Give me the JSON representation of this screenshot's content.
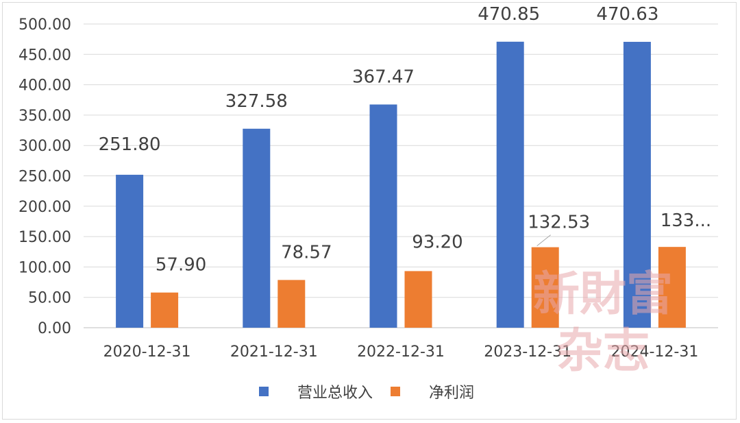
{
  "chart_data": {
    "type": "bar",
    "categories": [
      "2020-12-31",
      "2021-12-31",
      "2022-12-31",
      "2023-12-31",
      "2024-12-31"
    ],
    "series": [
      {
        "name": "营业总收入",
        "color": "#4472c4",
        "values": [
          251.8,
          327.58,
          367.47,
          470.85,
          470.63
        ],
        "labels": [
          "251.80",
          "327.58",
          "367.47",
          "470.85",
          "470.63"
        ]
      },
      {
        "name": "净利润",
        "color": "#ed7d31",
        "values": [
          57.9,
          78.57,
          93.2,
          132.53,
          133
        ],
        "labels": [
          "57.90",
          "78.57",
          "93.20",
          "132.53",
          "133..."
        ]
      }
    ],
    "yticks": [
      "0.00",
      "50.00",
      "100.00",
      "150.00",
      "200.00",
      "250.00",
      "300.00",
      "350.00",
      "400.00",
      "450.00",
      "500.00"
    ],
    "ylim": [
      0,
      500
    ],
    "grid": true,
    "legend": "bottom-center"
  },
  "watermark": {
    "line1": "新財富",
    "line2": "杂志",
    "color": "#e8a8ac"
  }
}
